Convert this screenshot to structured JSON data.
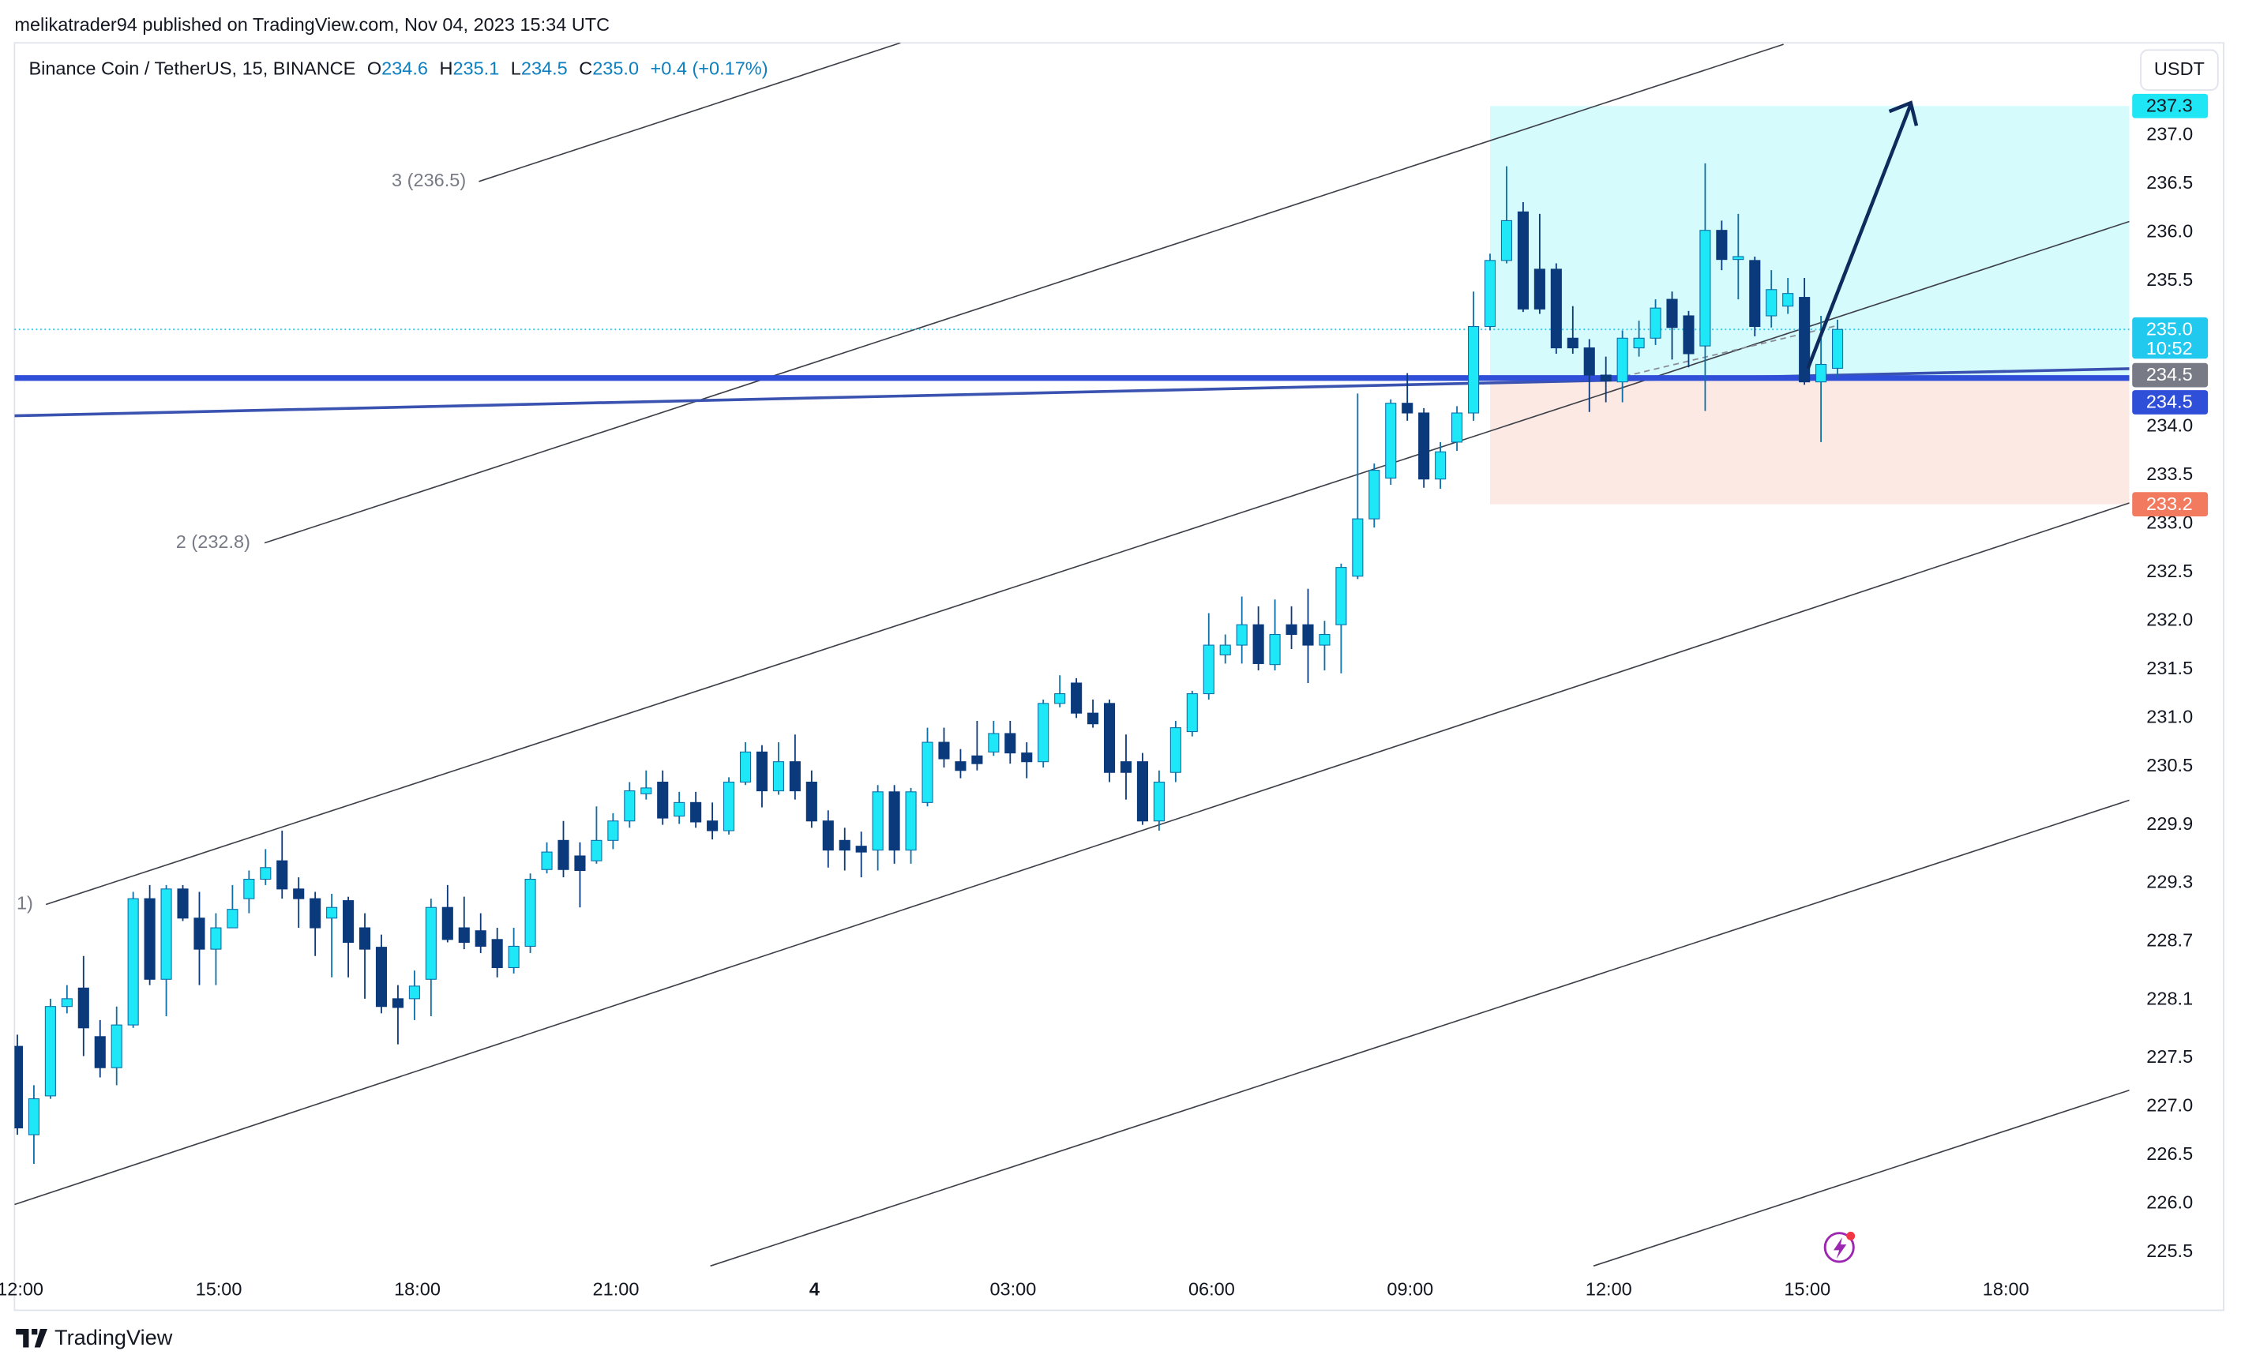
{
  "header": "melikatrader94 published on TradingView.com, Nov 04, 2023 15:34 UTC",
  "footer": "TradingView",
  "currency": "USDT",
  "legend": {
    "symbol": "Binance Coin / TetherUS, 15, BINANCE",
    "open_label": "O",
    "open": "234.6",
    "high_label": "H",
    "high": "235.1",
    "low_label": "L",
    "low": "234.5",
    "close_label": "C",
    "close": "235.0",
    "change": "+0.4 (+0.17%)"
  },
  "channel_labels": [
    "3 (236.5)",
    "2 (232.8)",
    "1)"
  ],
  "chart_data": {
    "type": "candlestick",
    "x": [
      "12:00",
      "12:15",
      "12:30",
      "12:45",
      "13:00",
      "13:15",
      "13:30",
      "13:45",
      "14:00",
      "14:15",
      "14:30",
      "14:45",
      "15:00",
      "15:15",
      "15:30",
      "15:45",
      "16:00",
      "16:15",
      "16:30",
      "16:45",
      "17:00",
      "17:15",
      "17:30",
      "17:45",
      "18:00",
      "18:15",
      "18:30",
      "18:45",
      "19:00",
      "19:15",
      "19:30",
      "19:45",
      "20:00",
      "20:15",
      "20:30",
      "20:45",
      "21:00",
      "21:15",
      "21:30",
      "21:45",
      "22:00",
      "22:15",
      "22:30",
      "22:45",
      "23:00",
      "23:15",
      "23:30",
      "23:45",
      "4",
      "00:15",
      "00:30",
      "00:45",
      "01:00",
      "01:15",
      "01:30",
      "01:45",
      "02:00",
      "02:15",
      "02:30",
      "02:45",
      "03:00",
      "03:15",
      "03:30",
      "03:45",
      "04:00",
      "04:15",
      "04:30",
      "04:45",
      "05:00",
      "05:15",
      "05:30",
      "05:45",
      "06:00",
      "06:15",
      "06:30",
      "06:45",
      "07:00",
      "07:15",
      "07:30",
      "07:45",
      "08:00",
      "08:15",
      "08:30",
      "08:45",
      "09:00",
      "09:15",
      "09:30",
      "09:45",
      "10:00",
      "10:15",
      "10:30",
      "10:45",
      "11:00",
      "11:15",
      "11:30",
      "11:45",
      "12:00",
      "12:15",
      "12:30",
      "12:45",
      "13:00",
      "13:15",
      "13:30",
      "13:45",
      "14:00",
      "14:15",
      "14:30",
      "14:45",
      "15:00",
      "15:15",
      "15:30",
      "15:45",
      "16:00",
      "16:15",
      "16:30",
      "16:45",
      "17:00",
      "17:15",
      "17:30",
      "17:45",
      "18:00"
    ],
    "open": [
      227.62,
      226.71,
      227.11,
      228.03,
      228.22,
      227.72,
      227.4,
      227.84,
      229.14,
      228.31,
      229.24,
      228.94,
      228.62,
      228.84,
      229.14,
      229.34,
      229.53,
      229.24,
      229.14,
      228.94,
      229.12,
      228.84,
      228.64,
      228.11,
      228.11,
      228.31,
      229.05,
      228.84,
      228.81,
      228.72,
      228.43,
      228.65,
      229.44,
      229.74,
      229.58,
      229.53,
      229.74,
      229.94,
      230.22,
      230.34,
      229.99,
      230.13,
      229.94,
      229.84,
      230.34,
      230.65,
      230.25,
      230.55,
      230.34,
      229.94,
      229.74,
      229.68,
      229.64,
      230.24,
      229.64,
      230.13,
      230.75,
      230.55,
      230.61,
      230.65,
      230.84,
      230.64,
      230.55,
      231.15,
      231.36,
      231.05,
      231.15,
      230.55,
      230.55,
      229.94,
      230.44,
      230.86,
      231.25,
      231.65,
      231.75,
      231.96,
      231.55,
      231.96,
      231.96,
      231.75,
      231.96,
      232.46,
      233.05,
      233.47,
      234.24,
      234.14,
      233.46,
      233.84,
      234.14,
      235.03,
      235.71,
      236.21,
      235.62,
      235.62,
      234.91,
      234.81,
      234.53,
      234.46,
      234.81,
      234.91,
      235.31,
      235.14,
      234.83,
      236.02,
      235.72,
      235.71,
      235.14,
      235.24,
      235.33,
      234.46,
      234.6,
      null,
      null,
      null,
      null,
      null,
      null,
      null,
      null,
      null,
      null
    ],
    "high": [
      227.74,
      227.22,
      228.11,
      228.25,
      228.55,
      227.89,
      228.03,
      229.21,
      229.28,
      229.28,
      229.28,
      229.21,
      228.99,
      229.28,
      229.43,
      229.65,
      229.84,
      229.36,
      229.21,
      229.19,
      229.16,
      228.99,
      228.77,
      228.25,
      228.4,
      229.14,
      229.28,
      229.16,
      228.99,
      228.84,
      228.84,
      229.4,
      229.72,
      229.94,
      229.72,
      230.09,
      230.02,
      230.34,
      230.46,
      230.46,
      230.24,
      230.24,
      230.13,
      230.39,
      230.75,
      230.72,
      230.75,
      230.83,
      230.46,
      230.05,
      229.87,
      229.83,
      230.31,
      230.31,
      230.28,
      230.9,
      230.9,
      230.68,
      230.97,
      230.97,
      230.97,
      230.75,
      231.19,
      231.44,
      231.41,
      231.19,
      231.19,
      230.83,
      230.64,
      230.46,
      230.97,
      231.28,
      232.08,
      231.86,
      232.25,
      232.15,
      232.22,
      232.15,
      232.33,
      232.0,
      232.59,
      234.34,
      233.62,
      234.28,
      234.55,
      234.19,
      233.84,
      234.21,
      235.39,
      235.78,
      236.68,
      236.31,
      236.19,
      235.68,
      235.24,
      234.9,
      234.72,
      234.99,
      235.09,
      235.31,
      235.39,
      235.19,
      236.71,
      236.12,
      236.19,
      235.75,
      235.61,
      235.53,
      235.53,
      235.14,
      235.1,
      null,
      null,
      null,
      null,
      null,
      null,
      null,
      null,
      null,
      null
    ],
    "low": [
      226.71,
      226.41,
      227.08,
      227.96,
      227.52,
      227.3,
      227.22,
      227.81,
      228.25,
      227.93,
      228.91,
      228.25,
      228.25,
      228.84,
      228.99,
      229.28,
      229.14,
      228.84,
      228.55,
      228.33,
      228.33,
      228.11,
      227.96,
      227.64,
      227.89,
      227.93,
      228.69,
      228.62,
      228.58,
      228.33,
      228.37,
      228.58,
      229.4,
      229.36,
      229.05,
      229.5,
      229.65,
      229.87,
      230.16,
      229.9,
      229.91,
      229.87,
      229.75,
      229.8,
      230.31,
      230.08,
      230.21,
      230.16,
      229.87,
      229.46,
      229.43,
      229.36,
      229.43,
      229.5,
      229.5,
      230.09,
      230.49,
      230.38,
      230.46,
      230.61,
      230.53,
      230.38,
      230.49,
      231.11,
      231.0,
      230.9,
      230.34,
      230.16,
      229.9,
      229.84,
      230.34,
      230.81,
      231.19,
      231.56,
      231.56,
      231.49,
      231.49,
      231.71,
      231.36,
      231.49,
      231.46,
      232.43,
      232.96,
      233.4,
      234.06,
      233.37,
      233.36,
      233.75,
      234.06,
      234.99,
      235.68,
      235.18,
      235.16,
      234.75,
      234.75,
      234.15,
      234.25,
      234.25,
      234.72,
      234.84,
      234.69,
      234.61,
      234.16,
      235.61,
      235.31,
      234.93,
      235.02,
      235.16,
      234.43,
      233.84,
      234.5,
      null,
      null,
      null,
      null,
      null,
      null,
      null,
      null,
      null,
      null
    ],
    "close": [
      226.78,
      227.08,
      228.03,
      228.11,
      227.81,
      227.4,
      227.84,
      229.14,
      228.31,
      229.24,
      228.94,
      228.62,
      228.84,
      229.03,
      229.34,
      229.46,
      229.24,
      229.14,
      228.84,
      229.05,
      228.69,
      228.62,
      228.03,
      228.02,
      228.24,
      229.05,
      228.72,
      228.69,
      228.65,
      228.43,
      228.65,
      229.34,
      229.62,
      229.44,
      229.43,
      229.74,
      229.94,
      230.25,
      230.28,
      229.97,
      230.13,
      229.93,
      229.84,
      230.34,
      230.65,
      230.25,
      230.55,
      230.25,
      229.94,
      229.64,
      229.64,
      229.62,
      230.24,
      229.64,
      230.24,
      230.75,
      230.58,
      230.46,
      230.53,
      230.84,
      230.64,
      230.55,
      231.15,
      231.25,
      231.05,
      230.94,
      230.44,
      230.44,
      229.94,
      230.34,
      230.9,
      231.25,
      231.75,
      231.75,
      231.96,
      231.56,
      231.86,
      231.86,
      231.75,
      231.86,
      232.55,
      233.05,
      233.55,
      234.24,
      234.14,
      233.46,
      233.74,
      234.14,
      235.03,
      235.71,
      236.12,
      235.21,
      235.21,
      234.81,
      234.81,
      234.53,
      234.47,
      234.91,
      234.91,
      235.22,
      235.02,
      234.75,
      236.02,
      235.72,
      235.75,
      235.03,
      235.41,
      235.37,
      234.46,
      234.64,
      235,
      null,
      null,
      null,
      null,
      null,
      null,
      null,
      null,
      null,
      null
    ],
    "up_color": "#1ee8f7",
    "down_color": "#0b3a7c",
    "up_wick": "#0c6fa8",
    "down_wick": "#0b3a7c",
    "ylim": [
      225.3,
      237.95
    ],
    "yticks": [
      225.5,
      {
        "value": 226,
        "label": "226.0"
      },
      226.5,
      {
        "value": 227,
        "label": "227.0"
      },
      227.5,
      228.1,
      228.7,
      229.3,
      229.9,
      230.5,
      {
        "value": 231,
        "label": "231.0"
      },
      231.5,
      {
        "value": 232,
        "label": "232.0"
      },
      232.5,
      {
        "value": 233,
        "label": "233.0"
      },
      233.5,
      {
        "value": 234,
        "label": "234.0"
      },
      235.5,
      {
        "value": 236,
        "label": "236.0"
      },
      236.5,
      {
        "value": 237,
        "label": "237.0"
      }
    ],
    "grid": false,
    "position": {
      "start": "10:15",
      "entry": 234.5,
      "target": 237.3,
      "stop": 233.2,
      "target_color": "#d6fbfd",
      "stop_color": "#fde9e4",
      "entry_badge_color": "#787b86",
      "target_badge_color": "#1fe6f5",
      "stop_badge_color": "#f27a5e"
    },
    "level": {
      "value": 234.5,
      "color": "#2f4fd8"
    },
    "last_price": {
      "value": 235,
      "label": "235.0",
      "countdown": "10:52",
      "color": "#22c9ef"
    }
  }
}
